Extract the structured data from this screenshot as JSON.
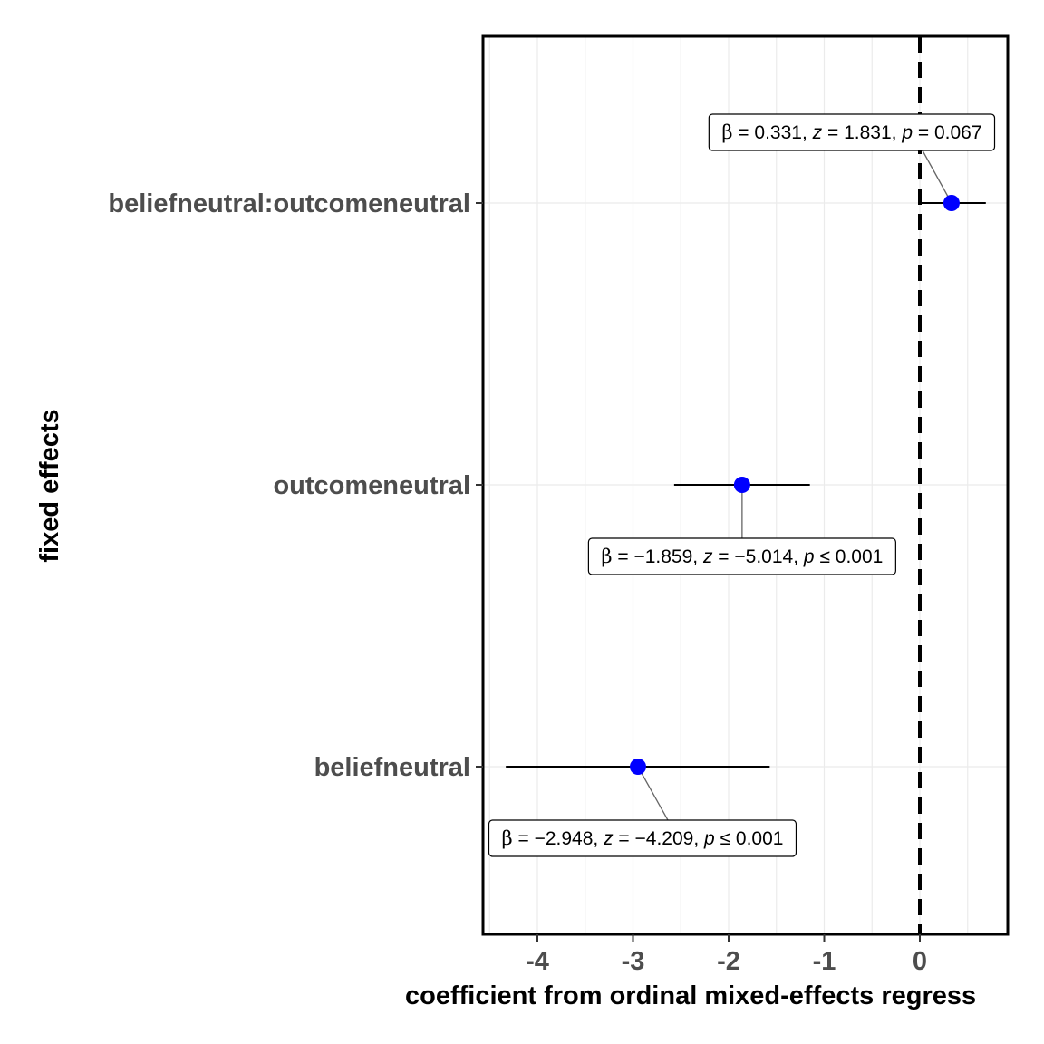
{
  "chart_data": {
    "type": "scatter",
    "subtype": "coefficient-plot",
    "xlabel": "coefficient from ordinal mixed-effects regress",
    "ylabel": "fixed effects",
    "xlim": [
      -4.58,
      0.93
    ],
    "x_ticks": [
      -4,
      -3,
      -2,
      -1,
      0
    ],
    "x_tick_labels": [
      "-4",
      "-3",
      "-2",
      "-1",
      "0"
    ],
    "reference_line": {
      "x": 0,
      "style": "dashed",
      "color": "#000000"
    },
    "grid": true,
    "point_color": "#0000ff",
    "terms": [
      {
        "term": "beliefneutral:outcomeneutral",
        "estimate": 0.331,
        "conf_low": 0.0,
        "conf_high": 0.69,
        "label": {
          "beta": "0.331",
          "z": "1.831",
          "p_rel": "=",
          "p": "0.067"
        }
      },
      {
        "term": "outcomeneutral",
        "estimate": -1.859,
        "conf_low": -2.57,
        "conf_high": -1.15,
        "label": {
          "beta": "−1.859",
          "z": "−5.014",
          "p_rel": "≤",
          "p": "0.001"
        }
      },
      {
        "term": "beliefneutral",
        "estimate": -2.948,
        "conf_low": -4.33,
        "conf_high": -1.57,
        "label": {
          "beta": "−2.948",
          "z": "−4.209",
          "p_rel": "≤",
          "p": "0.001"
        }
      }
    ]
  }
}
